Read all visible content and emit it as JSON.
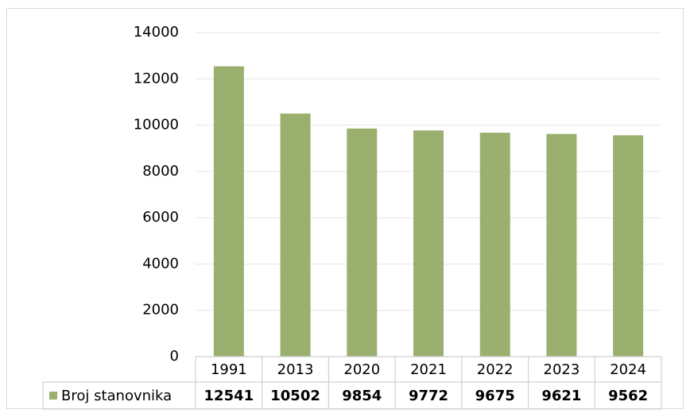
{
  "chart_data": {
    "type": "bar",
    "categories": [
      "1991",
      "2013",
      "2020",
      "2021",
      "2022",
      "2023",
      "2024"
    ],
    "series": [
      {
        "name": "Broj stanovnika",
        "color": "#9bb06f",
        "values": [
          12541,
          10502,
          9854,
          9772,
          9675,
          9621,
          9562
        ]
      }
    ],
    "ylim": [
      0,
      14000
    ],
    "yticks": [
      0,
      2000,
      4000,
      6000,
      8000,
      10000,
      12000,
      14000
    ],
    "grid": true,
    "legend": "data-table"
  }
}
